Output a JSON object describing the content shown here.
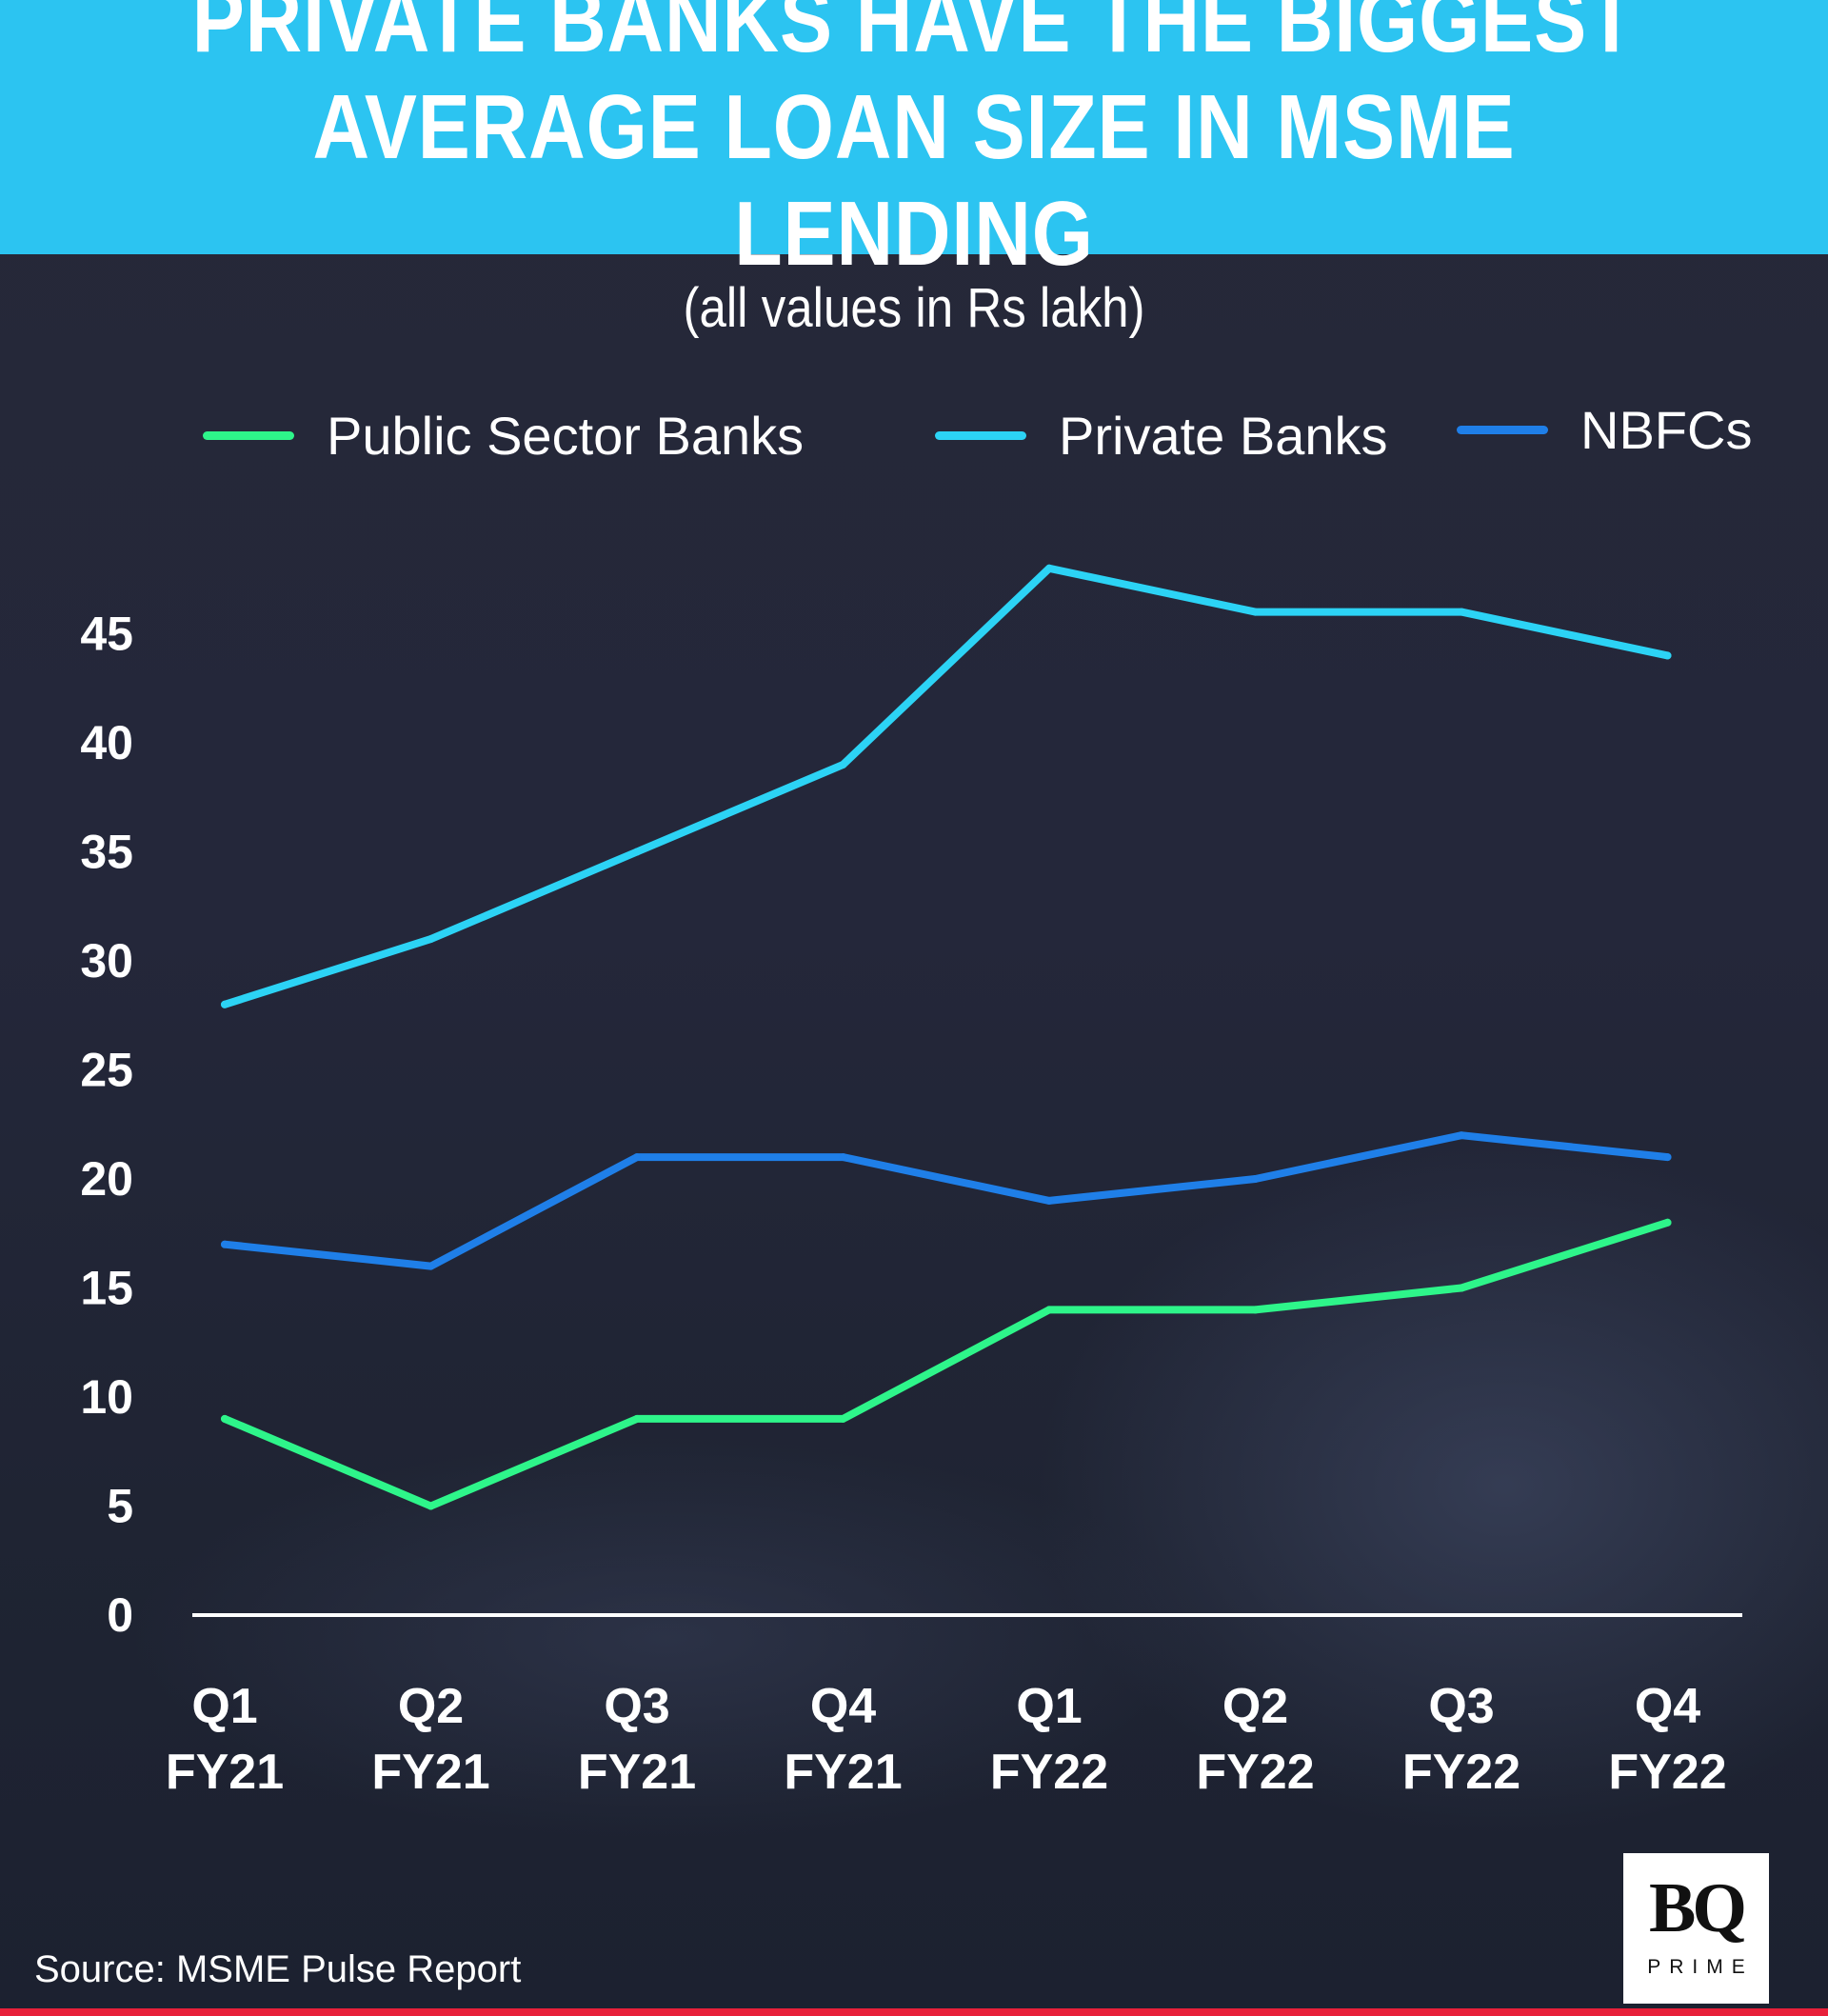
{
  "header": {
    "title": "PRIVATE BANKS HAVE THE BIGGEST AVERAGE LOAN SIZE IN MSME LENDING"
  },
  "chart_data": {
    "type": "line",
    "subtitle": "(all values in Rs lakh)",
    "categories": [
      "Q1 FY21",
      "Q2 FY21",
      "Q3 FY21",
      "Q4 FY21",
      "Q1 FY22",
      "Q2 FY22",
      "Q3 FY22",
      "Q4 FY22"
    ],
    "category_lines": [
      [
        "Q1",
        "FY21"
      ],
      [
        "Q2",
        "FY21"
      ],
      [
        "Q3",
        "FY21"
      ],
      [
        "Q4",
        "FY21"
      ],
      [
        "Q1",
        "FY22"
      ],
      [
        "Q2",
        "FY22"
      ],
      [
        "Q3",
        "FY22"
      ],
      [
        "Q4",
        "FY22"
      ]
    ],
    "series": [
      {
        "name": "Public Sector Banks",
        "color": "#2ef58a",
        "values": [
          9,
          5,
          9,
          9,
          14,
          14,
          15,
          18
        ]
      },
      {
        "name": "Private Banks",
        "color": "#2cd3f5",
        "values": [
          28,
          31,
          35,
          39,
          48,
          46,
          46,
          44
        ]
      },
      {
        "name": "NBFCs",
        "color": "#1f7fe8",
        "values": [
          17,
          16,
          21,
          21,
          19,
          20,
          22,
          21
        ]
      }
    ],
    "yticks": [
      0,
      5,
      10,
      15,
      20,
      25,
      30,
      35,
      40,
      45
    ],
    "ylim": [
      0,
      48
    ],
    "xlabel": "",
    "ylabel": "",
    "legend": "top",
    "grid": false
  },
  "footer": {
    "source": "Source: MSME Pulse Report"
  },
  "logo": {
    "mark": "BQ",
    "sub": "PRIME"
  }
}
